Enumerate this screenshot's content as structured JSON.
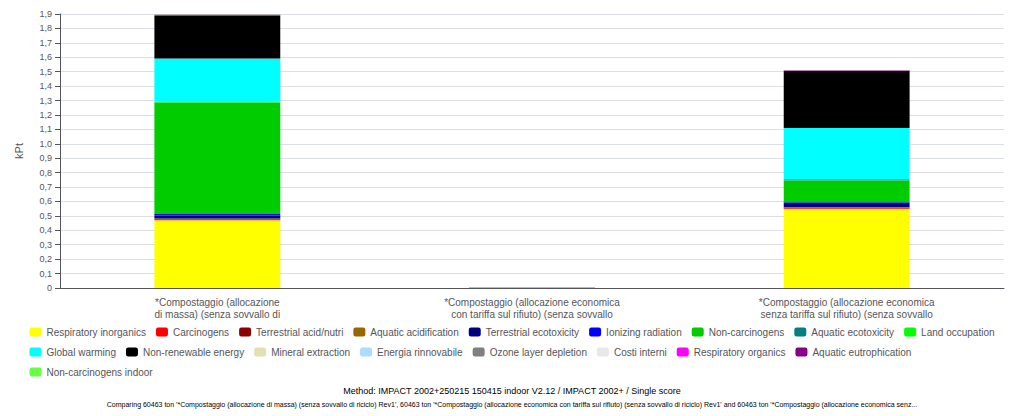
{
  "chart_data": {
    "type": "bar",
    "stacked": true,
    "categories": [
      "*Compostaggio (allocazione\ndi massa) (senza sovvallo di",
      "*Compostaggio (allocazione economica\ncon tariffa sul rifiuto) (senza sovvallo",
      "*Compostaggio (allocazione economica\nsenza tariffa sul rifiuto) (senza sovvallo"
    ],
    "series": [
      {
        "name": "Respiratory inorganics",
        "color": "#FFFF00",
        "values": [
          0.47,
          0.002,
          0.55
        ]
      },
      {
        "name": "Carcinogens",
        "color": "#FF0000",
        "values": [
          0.005,
          0.0,
          0.005
        ]
      },
      {
        "name": "Terrestrial acid/nutri",
        "color": "#8B0000",
        "values": [
          0.004,
          0.0,
          0.004
        ]
      },
      {
        "name": "Aquatic acidification",
        "color": "#996600",
        "values": [
          0.003,
          0.0,
          0.003
        ]
      },
      {
        "name": "Terrestrial ecotoxicity",
        "color": "#000080",
        "values": [
          0.02,
          0.0,
          0.02
        ]
      },
      {
        "name": "Ionizing radiation",
        "color": "#0000FF",
        "values": [
          0.012,
          0.0,
          0.012
        ]
      },
      {
        "name": "Non-carcinogens",
        "color": "#00CC00",
        "values": [
          0.77,
          0.0,
          0.15
        ]
      },
      {
        "name": "Aquatic ecotoxicity",
        "color": "#008080",
        "values": [
          0.003,
          0.0,
          0.003
        ]
      },
      {
        "name": "Land occupation",
        "color": "#00FF00",
        "values": [
          0.004,
          0.0,
          0.008
        ]
      },
      {
        "name": "Global warming",
        "color": "#00FFFF",
        "values": [
          0.3,
          0.0,
          0.355
        ]
      },
      {
        "name": "Non-renewable energy",
        "color": "#000000",
        "values": [
          0.3,
          0.002,
          0.395
        ]
      },
      {
        "name": "Mineral extraction",
        "color": "#E0E0B0",
        "values": [
          0.001,
          0.0,
          0.001
        ]
      },
      {
        "name": "Energia rinnovabile",
        "color": "#AADDFF",
        "values": [
          0.001,
          0.0,
          0.001
        ]
      },
      {
        "name": "Ozone layer depletion",
        "color": "#808080",
        "values": [
          0.001,
          0.0,
          0.001
        ]
      },
      {
        "name": "Costi interni",
        "color": "#E8E8E8",
        "values": [
          0.001,
          0.0,
          0.001
        ]
      },
      {
        "name": "Respiratory organics",
        "color": "#FF00FF",
        "values": [
          0.001,
          0.0,
          0.001
        ]
      },
      {
        "name": "Aquatic eutrophication",
        "color": "#880088",
        "values": [
          0.001,
          0.0,
          0.001
        ]
      },
      {
        "name": "Non-carcinogens indoor",
        "color": "#66FF44",
        "values": [
          0.001,
          0.0,
          0.001
        ]
      }
    ],
    "ylabel": "kPt",
    "ylim": [
      0,
      1.9
    ],
    "yticks": [
      0,
      {
        "value": 0.1,
        "label": "0,1"
      },
      {
        "value": 0.2,
        "label": "0,2"
      },
      {
        "value": 0.3,
        "label": "0,3"
      },
      {
        "value": 0.4,
        "label": "0,4"
      },
      {
        "value": 0.5,
        "label": "0,5"
      },
      {
        "value": 0.6,
        "label": "0,6"
      },
      {
        "value": 0.7,
        "label": "0,7"
      },
      {
        "value": 0.8,
        "label": "0,8"
      },
      {
        "value": 0.9,
        "label": "0,9"
      },
      {
        "value": 1.0,
        "label": "1,0"
      },
      {
        "value": 1.1,
        "label": "1,1"
      },
      {
        "value": 1.2,
        "label": "1,2"
      },
      {
        "value": 1.3,
        "label": "1,3"
      },
      {
        "value": 1.4,
        "label": "1,4"
      },
      {
        "value": 1.5,
        "label": "1,5"
      },
      {
        "value": 1.6,
        "label": "1,6"
      },
      {
        "value": 1.7,
        "label": "1,7"
      },
      {
        "value": 1.8,
        "label": "1,8"
      },
      {
        "value": 1.9,
        "label": "1,9"
      }
    ],
    "grid": true,
    "legend": "bottom",
    "annotations": [
      "Method: IMPACT 2002+250215 150415 indoor V2.12 / IMPACT 2002+ / Single score",
      "Comparing 60463 ton '*Compostaggio (allocazione di massa) (senza sovvallo di riciclo) Rev1', 60463 ton '*Compostaggio (allocazione economica con tariffa sul rifiuto) (senza sovvallo di riciclo) Rev1' and 60463 ton '*Compostaggio (allocazione economica senz..."
    ]
  }
}
